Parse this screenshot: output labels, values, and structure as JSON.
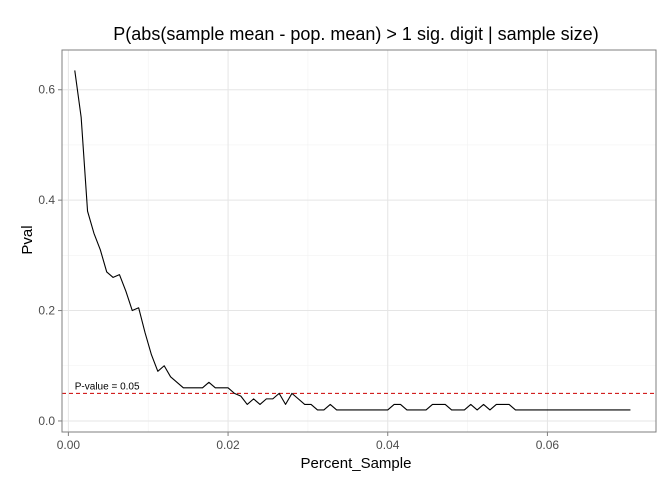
{
  "chart_data": {
    "type": "line",
    "title": "P(abs(sample mean - pop. mean) > 1 sig. digit | sample size)",
    "xlabel": "Percent_Sample",
    "ylabel": "Pval",
    "xlim": [
      -0.0008,
      0.0736
    ],
    "ylim": [
      -0.02,
      0.672
    ],
    "x_ticks": [
      0.0,
      0.02,
      0.04,
      0.06
    ],
    "x_tick_labels": [
      "0.00",
      "0.02",
      "0.04",
      "0.06"
    ],
    "y_ticks": [
      0.0,
      0.2,
      0.4,
      0.6
    ],
    "y_tick_labels": [
      "0.0",
      "0.2",
      "0.4",
      "0.6"
    ],
    "grid": true,
    "legend": "none",
    "series": [
      {
        "color": "#000000",
        "x": [
          0.0008,
          0.0016,
          0.0024,
          0.0032,
          0.004,
          0.0048,
          0.0056,
          0.0064,
          0.0072,
          0.008,
          0.0088,
          0.0096,
          0.0104,
          0.0112,
          0.012,
          0.0128,
          0.0136,
          0.0144,
          0.0152,
          0.016,
          0.0168,
          0.0176,
          0.0184,
          0.0192,
          0.02,
          0.0208,
          0.0216,
          0.0224,
          0.0232,
          0.024,
          0.0248,
          0.0256,
          0.0264,
          0.0272,
          0.028,
          0.0288,
          0.0296,
          0.0304,
          0.0312,
          0.032,
          0.0328,
          0.0336,
          0.0344,
          0.0352,
          0.036,
          0.0368,
          0.0376,
          0.0384,
          0.0392,
          0.04,
          0.0408,
          0.0416,
          0.0424,
          0.0432,
          0.044,
          0.0448,
          0.0456,
          0.0464,
          0.0472,
          0.048,
          0.0488,
          0.0496,
          0.0504,
          0.0512,
          0.052,
          0.0528,
          0.0536,
          0.0544,
          0.0552,
          0.056,
          0.0568,
          0.0576,
          0.0584,
          0.0592,
          0.06,
          0.0608,
          0.0616,
          0.0624,
          0.0632,
          0.064,
          0.0648,
          0.0656,
          0.0664,
          0.0672,
          0.068,
          0.0688,
          0.0696,
          0.0704
        ],
        "y": [
          0.635,
          0.55,
          0.38,
          0.34,
          0.31,
          0.27,
          0.26,
          0.265,
          0.235,
          0.2,
          0.205,
          0.16,
          0.12,
          0.09,
          0.1,
          0.08,
          0.07,
          0.06,
          0.06,
          0.06,
          0.06,
          0.07,
          0.06,
          0.06,
          0.06,
          0.05,
          0.045,
          0.03,
          0.04,
          0.03,
          0.04,
          0.04,
          0.05,
          0.03,
          0.05,
          0.04,
          0.03,
          0.03,
          0.02,
          0.02,
          0.03,
          0.02,
          0.02,
          0.02,
          0.02,
          0.02,
          0.02,
          0.02,
          0.02,
          0.02,
          0.03,
          0.03,
          0.02,
          0.02,
          0.02,
          0.02,
          0.03,
          0.03,
          0.03,
          0.02,
          0.02,
          0.02,
          0.03,
          0.02,
          0.03,
          0.02,
          0.03,
          0.03,
          0.03,
          0.02,
          0.02,
          0.02,
          0.02,
          0.02,
          0.02,
          0.02,
          0.02,
          0.02,
          0.02,
          0.02,
          0.02,
          0.02,
          0.02,
          0.02,
          0.02,
          0.02,
          0.02,
          0.02
        ]
      }
    ],
    "reference_line": {
      "y": 0.05,
      "label": "P-value = 0.05",
      "color": "#cc0000",
      "dash": "dashed"
    }
  }
}
